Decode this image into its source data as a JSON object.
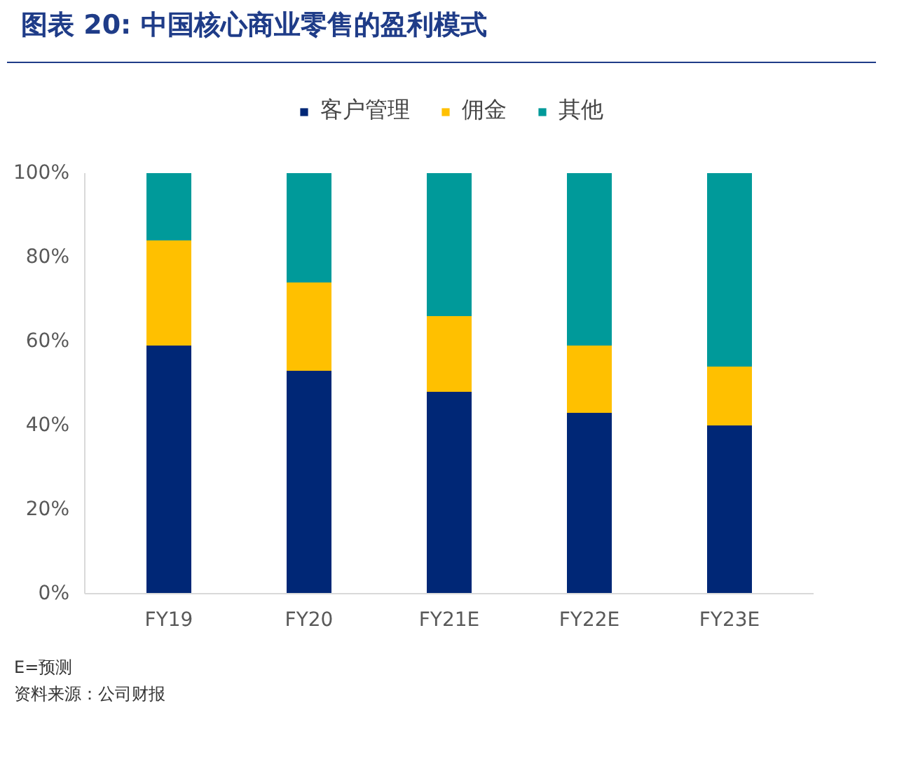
{
  "chart_data": {
    "type": "bar",
    "title": "图表 20: 中国核心商业零售的盈利模式",
    "stacked": true,
    "categories": [
      "FY19",
      "FY20",
      "FY21E",
      "FY22E",
      "FY23E"
    ],
    "series": [
      {
        "name": "客户管理",
        "color": "#002776",
        "values": [
          59,
          53,
          48,
          43,
          40
        ]
      },
      {
        "name": "佣金",
        "color": "#ffc000",
        "values": [
          25,
          21,
          18,
          16,
          14
        ]
      },
      {
        "name": "其他",
        "color": "#009a9a",
        "values": [
          16,
          26,
          34,
          41,
          46
        ]
      }
    ],
    "ylim": [
      0,
      100
    ],
    "yticks": [
      {
        "value": 0,
        "label": "0%"
      },
      {
        "value": 20,
        "label": "20%"
      },
      {
        "value": 40,
        "label": "40%"
      },
      {
        "value": 60,
        "label": "60%"
      },
      {
        "value": 80,
        "label": "80%"
      },
      {
        "value": 100,
        "label": "100%"
      }
    ],
    "grid": false,
    "legend": "top",
    "annotations": [
      "E=预测",
      "资料来源：公司财报"
    ]
  }
}
